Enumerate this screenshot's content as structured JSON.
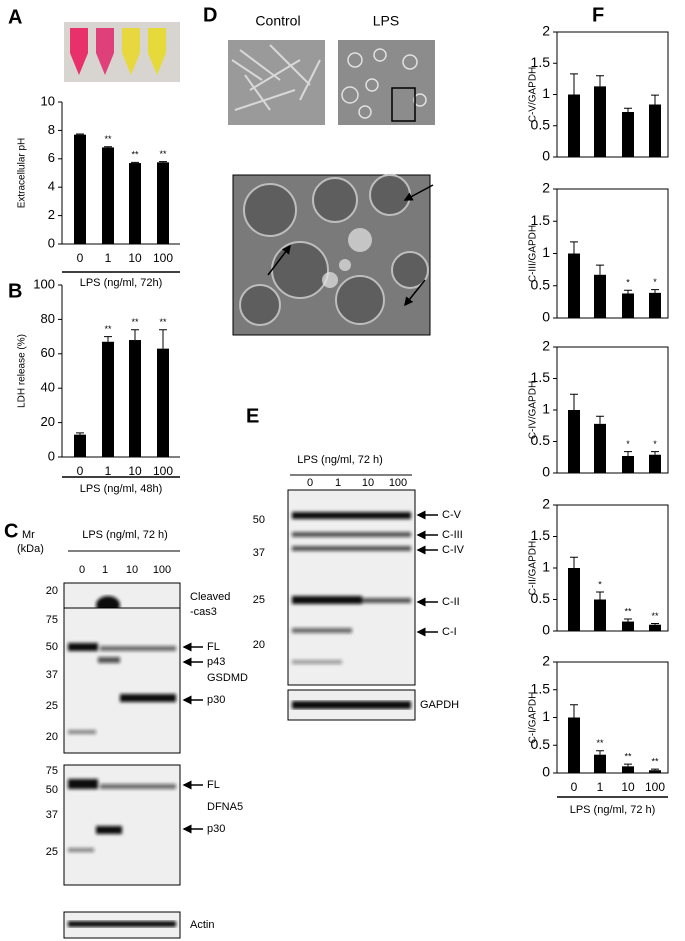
{
  "panel_labels": [
    "A",
    "B",
    "C",
    "D",
    "E",
    "F"
  ],
  "chart_data": [
    {
      "type": "bar",
      "ylabel": "Extracellular pH",
      "xlabel": "LPS (ng/ml, 72h)",
      "categories": [
        "0",
        "1",
        "10",
        "100"
      ],
      "values": [
        7.7,
        6.8,
        5.7,
        5.75
      ],
      "errors": [
        0.05,
        0.05,
        0.05,
        0.05
      ],
      "annotations": [
        null,
        "**",
        "**",
        "**"
      ],
      "color": "#000000",
      "ylim": [
        0,
        10
      ],
      "yticks": [
        0,
        2,
        4,
        6,
        8,
        10
      ]
    },
    {
      "type": "bar",
      "ylabel": "LDH release (%)",
      "xlabel": "LPS (ng/ml, 48h)",
      "categories": [
        "0",
        "1",
        "10",
        "100"
      ],
      "values": [
        13,
        67,
        68,
        63
      ],
      "errors": [
        1,
        3,
        6,
        11
      ],
      "annotations": [
        null,
        "**",
        "**",
        "**"
      ],
      "color": "#000000",
      "ylim": [
        0,
        100
      ],
      "yticks": [
        0,
        20,
        40,
        60,
        80,
        100
      ]
    },
    {
      "type": "bar",
      "ylabel": "C-V/GAPDH",
      "values": [
        1,
        1.13,
        0.72,
        0.84
      ],
      "errors": [
        0.33,
        0.17,
        0.06,
        0.15
      ],
      "annotations": [
        null,
        null,
        null,
        null
      ],
      "color": "#000000",
      "ylim": [
        0,
        2
      ],
      "yticks": [
        0,
        0.5,
        1,
        1.5,
        2
      ]
    },
    {
      "type": "bar",
      "ylabel": "C-III/GAPDH",
      "values": [
        1,
        0.67,
        0.38,
        0.39
      ],
      "errors": [
        0.18,
        0.15,
        0.05,
        0.05
      ],
      "annotations": [
        null,
        null,
        "*",
        "*"
      ],
      "color": "#000000",
      "ylim": [
        0,
        2
      ],
      "yticks": [
        0,
        0.5,
        1,
        1.5,
        2
      ]
    },
    {
      "type": "bar",
      "ylabel": "C-IV/GAPDH",
      "values": [
        1,
        0.78,
        0.27,
        0.29
      ],
      "errors": [
        0.25,
        0.12,
        0.07,
        0.05
      ],
      "annotations": [
        null,
        null,
        "*",
        "*"
      ],
      "color": "#000000",
      "ylim": [
        0,
        2
      ],
      "yticks": [
        0,
        0.5,
        1,
        1.5,
        2
      ]
    },
    {
      "type": "bar",
      "ylabel": "C-II/GAPDH",
      "values": [
        1,
        0.5,
        0.15,
        0.1
      ],
      "errors": [
        0.17,
        0.12,
        0.04,
        0.02
      ],
      "annotations": [
        null,
        "*",
        "**",
        "**"
      ],
      "color": "#000000",
      "ylim": [
        0,
        2
      ],
      "yticks": [
        0,
        0.5,
        1,
        1.5,
        2
      ]
    },
    {
      "type": "bar",
      "ylabel": "C-I/GAPDH",
      "xlabel": "LPS (ng/ml, 72 h)",
      "categories": [
        "0",
        "1",
        "10",
        "100"
      ],
      "values": [
        1,
        0.33,
        0.12,
        0.05
      ],
      "errors": [
        0.23,
        0.07,
        0.04,
        0.02
      ],
      "annotations": [
        null,
        "**",
        "**",
        "**"
      ],
      "color": "#000000",
      "ylim": [
        0,
        2
      ],
      "yticks": [
        0,
        0.5,
        1,
        1.5,
        2
      ]
    }
  ],
  "micrographs": {
    "labels": [
      "Control",
      "LPS"
    ]
  },
  "blot_c": {
    "header": "LPS (ng/ml, 72 h)",
    "mr": [
      "Mr",
      "(kDa)"
    ],
    "lanes": [
      "0",
      "1",
      "10",
      "100"
    ],
    "markers": [
      20,
      75,
      50,
      37,
      25,
      20,
      75,
      50,
      37,
      25
    ],
    "bands": [
      "Cleaved",
      "-cas3",
      "FL",
      "p43",
      "GSDMD",
      "p30",
      "FL",
      "DFNA5",
      "p30",
      "Actin"
    ]
  },
  "blot_e": {
    "header": "LPS (ng/ml, 72 h)",
    "lanes": [
      "0",
      "1",
      "10",
      "100"
    ],
    "markers": [
      50,
      37,
      25,
      20
    ],
    "bands": [
      "C-V",
      "C-III",
      "C-IV",
      "C-II",
      "C-I",
      "GAPDH"
    ]
  }
}
